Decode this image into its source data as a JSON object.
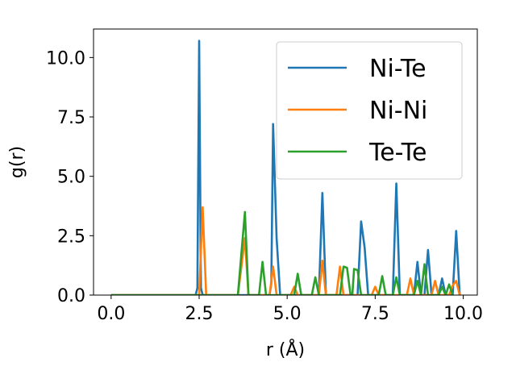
{
  "chart_data": {
    "type": "line",
    "title": "",
    "xlabel": "r (Å)",
    "ylabel": "g(r)",
    "xlim": [
      -0.5,
      10.4
    ],
    "ylim": [
      0,
      11.2
    ],
    "xticks": [
      {
        "value": 0.0,
        "label": "0.0"
      },
      {
        "value": 2.5,
        "label": "2.5"
      },
      {
        "value": 5.0,
        "label": "5.0"
      },
      {
        "value": 7.5,
        "label": "7.5"
      },
      {
        "value": 10.0,
        "label": "10.0"
      }
    ],
    "yticks": [
      {
        "value": 0.0,
        "label": "0.0"
      },
      {
        "value": 2.5,
        "label": "2.5"
      },
      {
        "value": 5.0,
        "label": "5.0"
      },
      {
        "value": 7.5,
        "label": "7.5"
      },
      {
        "value": 10.0,
        "label": "10.0"
      }
    ],
    "grid": false,
    "legend_position": "top-right",
    "series": [
      {
        "name": "Ni-Te",
        "color": "#1f77b4",
        "points": [
          [
            0.0,
            0
          ],
          [
            2.4,
            0
          ],
          [
            2.45,
            0.3
          ],
          [
            2.5,
            10.7
          ],
          [
            2.55,
            0.3
          ],
          [
            2.6,
            0
          ],
          [
            4.5,
            0
          ],
          [
            4.55,
            0.5
          ],
          [
            4.6,
            7.2
          ],
          [
            4.7,
            2.4
          ],
          [
            4.8,
            0
          ],
          [
            5.9,
            0
          ],
          [
            6.0,
            4.3
          ],
          [
            6.1,
            0
          ],
          [
            7.0,
            0
          ],
          [
            7.1,
            3.1
          ],
          [
            7.2,
            2.0
          ],
          [
            7.3,
            0
          ],
          [
            8.0,
            0
          ],
          [
            8.1,
            4.7
          ],
          [
            8.2,
            0
          ],
          [
            8.6,
            0
          ],
          [
            8.7,
            1.4
          ],
          [
            8.8,
            0
          ],
          [
            8.9,
            0
          ],
          [
            9.0,
            1.9
          ],
          [
            9.1,
            0
          ],
          [
            9.3,
            0
          ],
          [
            9.4,
            0.7
          ],
          [
            9.5,
            0
          ],
          [
            9.7,
            0
          ],
          [
            9.8,
            2.7
          ],
          [
            9.9,
            0
          ]
        ]
      },
      {
        "name": "Ni-Ni",
        "color": "#ff7f0e",
        "points": [
          [
            0.0,
            0
          ],
          [
            2.5,
            0
          ],
          [
            2.6,
            3.7
          ],
          [
            2.7,
            0
          ],
          [
            3.6,
            0
          ],
          [
            3.8,
            2.4
          ],
          [
            3.9,
            0
          ],
          [
            4.5,
            0
          ],
          [
            4.6,
            1.2
          ],
          [
            4.7,
            0
          ],
          [
            5.1,
            0
          ],
          [
            5.2,
            0.35
          ],
          [
            5.3,
            0
          ],
          [
            5.9,
            0
          ],
          [
            6.0,
            1.45
          ],
          [
            6.1,
            0
          ],
          [
            6.4,
            0
          ],
          [
            6.5,
            1.2
          ],
          [
            6.6,
            0
          ],
          [
            7.4,
            0
          ],
          [
            7.5,
            0.35
          ],
          [
            7.6,
            0
          ],
          [
            8.4,
            0
          ],
          [
            8.5,
            0.7
          ],
          [
            8.6,
            0
          ],
          [
            9.1,
            0
          ],
          [
            9.2,
            0.6
          ],
          [
            9.3,
            0
          ],
          [
            9.6,
            0
          ],
          [
            9.7,
            0.4
          ],
          [
            9.8,
            0.6
          ],
          [
            9.9,
            0
          ]
        ]
      },
      {
        "name": "Te-Te",
        "color": "#2ca02c",
        "points": [
          [
            0.0,
            0
          ],
          [
            3.6,
            0
          ],
          [
            3.8,
            3.5
          ],
          [
            3.9,
            0
          ],
          [
            4.2,
            0
          ],
          [
            4.3,
            1.4
          ],
          [
            4.4,
            0
          ],
          [
            5.2,
            0
          ],
          [
            5.3,
            0.9
          ],
          [
            5.4,
            0
          ],
          [
            5.7,
            0
          ],
          [
            5.8,
            0.75
          ],
          [
            5.9,
            0
          ],
          [
            6.5,
            0
          ],
          [
            6.6,
            1.2
          ],
          [
            6.7,
            1.15
          ],
          [
            6.8,
            0
          ],
          [
            6.85,
            0
          ],
          [
            6.9,
            1.1
          ],
          [
            7.0,
            1.05
          ],
          [
            7.1,
            0
          ],
          [
            7.6,
            0
          ],
          [
            7.7,
            0.8
          ],
          [
            7.8,
            0
          ],
          [
            8.0,
            0
          ],
          [
            8.1,
            0.75
          ],
          [
            8.2,
            0
          ],
          [
            8.6,
            0
          ],
          [
            8.7,
            0.6
          ],
          [
            8.8,
            0
          ],
          [
            8.8,
            0
          ],
          [
            8.9,
            1.3
          ],
          [
            9.0,
            0
          ],
          [
            9.3,
            0
          ],
          [
            9.4,
            0.35
          ],
          [
            9.5,
            0
          ],
          [
            9.5,
            0
          ],
          [
            9.6,
            0.45
          ],
          [
            9.7,
            0
          ]
        ]
      }
    ]
  }
}
